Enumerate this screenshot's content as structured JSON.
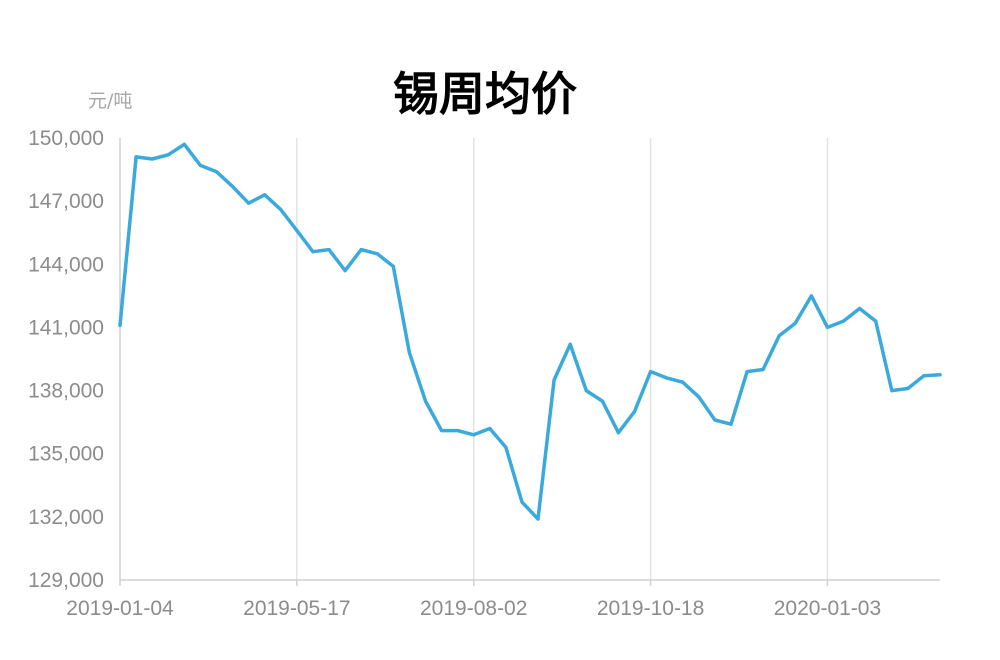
{
  "chart_data": {
    "type": "line",
    "title": "锡周均价",
    "ylabel": "元/吨",
    "xlabel": "",
    "ylim": [
      129000,
      150000
    ],
    "yticks": [
      150000,
      147000,
      144000,
      141000,
      138000,
      135000,
      132000,
      129000
    ],
    "ytick_labels": [
      "150,000",
      "147,000",
      "144,000",
      "141,000",
      "138,000",
      "135,000",
      "132,000",
      "129,000"
    ],
    "xtick_labels": [
      "2019-01-04",
      "2019-05-17",
      "2019-08-02",
      "2019-10-18",
      "2020-01-03"
    ],
    "xtick_positions": [
      0,
      11,
      22,
      33,
      44
    ],
    "grid": "vertical",
    "legend": "none",
    "color": "#3aaadd",
    "series": [
      {
        "values": [
          141100,
          149100,
          149000,
          149200,
          149700,
          148700,
          148400,
          147700,
          146900,
          147300,
          146600,
          145600,
          144600,
          144700,
          143700,
          144700,
          144500,
          143900,
          139800,
          137500,
          136100,
          136100,
          135900,
          136200,
          135300,
          132700,
          131900,
          138500,
          140200,
          138000,
          137500,
          136000,
          137000,
          138900,
          138600,
          138400,
          137700,
          136600,
          136400,
          138900,
          139000,
          140600,
          141200,
          142500,
          141000,
          141300,
          141900,
          141300,
          138000,
          138100,
          138700,
          138750
        ]
      }
    ]
  }
}
